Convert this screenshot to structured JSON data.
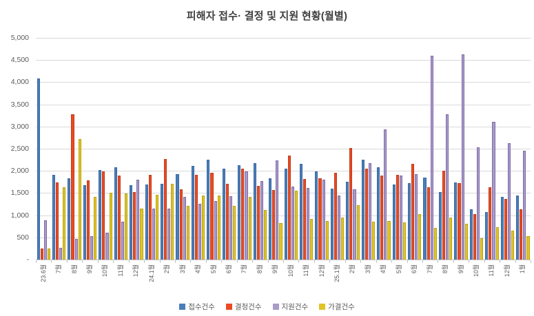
{
  "title": "피해자 접수· 결정 및 지원 현황(월별)",
  "chart_data": {
    "type": "bar",
    "title": "피해자 접수· 결정 및 지원 현황(월별)",
    "xlabel": "",
    "ylabel": "",
    "ylim": [
      0,
      5000
    ],
    "ytick_interval": 500,
    "ytick_labels_top_to_bottom": [
      "5,000",
      "4,500",
      "4,000",
      "3,500",
      "3,000",
      "2,500",
      "2,000",
      "1,500",
      "1,000",
      "500",
      "-"
    ],
    "grid": true,
    "legend_position": "bottom",
    "categories": [
      "23.6월",
      "7월",
      "8월",
      "9월",
      "10월",
      "11월",
      "12월",
      "24.1월",
      "2월",
      "3월",
      "4월",
      "5월",
      "6월",
      "7월",
      "8월",
      "9월",
      "10월",
      "11월",
      "12월",
      "25.1월",
      "2월",
      "3월",
      "4월",
      "5월",
      "6월",
      "7월",
      "8월",
      "9월",
      "10월",
      "11월",
      "12월",
      "1월"
    ],
    "series": [
      {
        "name": "접수건수",
        "color": "#4a7ebb",
        "border": "#39689f",
        "values": [
          4090,
          1910,
          1840,
          1670,
          2020,
          2080,
          1680,
          1700,
          1710,
          1930,
          2115,
          2245,
          2050,
          2120,
          2170,
          1830,
          2045,
          2160,
          1985,
          1595,
          1750,
          2245,
          2075,
          1690,
          1725,
          1855,
          1515,
          1740,
          1140,
          1065,
          1410,
          1440
        ]
      },
      {
        "name": "결정건수",
        "color": "#ea4a24",
        "border": "#c23c1a",
        "values": [
          250,
          1740,
          3280,
          1790,
          1990,
          1890,
          1525,
          1905,
          2260,
          1580,
          1905,
          1960,
          1715,
          2045,
          1655,
          1570,
          2350,
          1815,
          1840,
          1950,
          2520,
          2055,
          1895,
          1915,
          2155,
          1635,
          2000,
          1725,
          1030,
          1630,
          1360,
          1135
        ]
      },
      {
        "name": "지원건수",
        "color": "#a99bc9",
        "border": "#7d6ba7",
        "values": [
          890,
          265,
          470,
          530,
          610,
          855,
          1805,
          1145,
          1150,
          1410,
          1255,
          1315,
          1430,
          1990,
          1775,
          2240,
          1645,
          1620,
          1805,
          1450,
          1585,
          2180,
          2930,
          1895,
          1930,
          4600,
          3270,
          4630,
          2530,
          3100,
          2620,
          2450
        ]
      },
      {
        "name": "가결건수",
        "color": "#e0c428",
        "border": "#bba30d",
        "values": [
          255,
          1625,
          2720,
          1420,
          1510,
          1495,
          1150,
          1465,
          1710,
          1205,
          1450,
          1440,
          1205,
          1410,
          1125,
          825,
          1555,
          915,
          875,
          945,
          1230,
          850,
          865,
          840,
          1030,
          720,
          945,
          800,
          475,
          735,
          655,
          525
        ]
      }
    ]
  }
}
